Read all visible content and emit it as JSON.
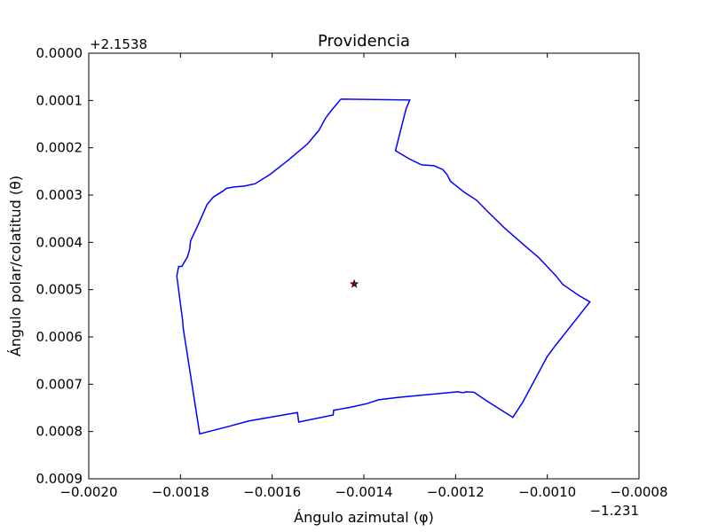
{
  "chart_data": {
    "type": "line",
    "title": "Providencia",
    "xlabel": "Ángulo azimutal (φ)",
    "ylabel": "Ángulo polar/colatitud (θ)",
    "x_offset_text": "−1.231",
    "y_offset_text": "+2.1538",
    "xlim": [
      -0.002,
      -0.0008
    ],
    "ylim": [
      0.0009,
      0.0
    ],
    "y_inverted": true,
    "x_tick_labels": [
      "−0.0020",
      "−0.0018",
      "−0.0016",
      "−0.0014",
      "−0.0012",
      "−0.0010",
      "−0.0008"
    ],
    "y_tick_labels": [
      "0.0000",
      "0.0001",
      "0.0002",
      "0.0003",
      "0.0004",
      "0.0005",
      "0.0006",
      "0.0007",
      "0.0008",
      "0.0009"
    ],
    "grid": false,
    "legend": "none",
    "boundary_color": "#0000ff",
    "centroid_color": "#8b0000",
    "series": [
      {
        "values": [
          [
            -0.00145,
            9.7e-05
          ],
          [
            -0.0013,
            9.9e-05
          ],
          [
            -0.001308,
            0.000118
          ],
          [
            -0.001331,
            0.000206
          ],
          [
            -0.0013,
            0.000224
          ],
          [
            -0.001274,
            0.000236
          ],
          [
            -0.001247,
            0.000238
          ],
          [
            -0.001228,
            0.000246
          ],
          [
            -0.001219,
            0.000256
          ],
          [
            -0.001211,
            0.000271
          ],
          [
            -0.001181,
            0.000294
          ],
          [
            -0.001154,
            0.000311
          ],
          [
            -0.001134,
            0.000331
          ],
          [
            -0.001094,
            0.000369
          ],
          [
            -0.001054,
            0.000403
          ],
          [
            -0.001019,
            0.000432
          ],
          [
            -0.000981,
            0.000471
          ],
          [
            -0.000966,
            0.000489
          ],
          [
            -0.00093,
            0.000513
          ],
          [
            -0.000907,
            0.000526
          ],
          [
            -0.000983,
            0.000619
          ],
          [
            -0.001,
            0.000641
          ],
          [
            -0.001053,
            0.000737
          ],
          [
            -0.001075,
            0.00077
          ],
          [
            -0.001131,
            0.000736
          ],
          [
            -0.00116,
            0.000717
          ],
          [
            -0.001178,
            0.000716
          ],
          [
            -0.001183,
            0.000718
          ],
          [
            -0.001196,
            0.000716
          ],
          [
            -0.001326,
            0.000728
          ],
          [
            -0.001368,
            0.000733
          ],
          [
            -0.001393,
            0.000741
          ],
          [
            -0.001431,
            0.000749
          ],
          [
            -0.001466,
            0.000755
          ],
          [
            -0.001467,
            0.000765
          ],
          [
            -0.001542,
            0.00078
          ],
          [
            -0.001545,
            0.00076
          ],
          [
            -0.001652,
            0.000778
          ],
          [
            -0.001694,
            0.000789
          ],
          [
            -0.001758,
            0.000805
          ],
          [
            -0.001794,
            0.000581
          ],
          [
            -0.001795,
            0.000567
          ],
          [
            -0.001808,
            0.000471
          ],
          [
            -0.001804,
            0.000451
          ],
          [
            -0.001797,
            0.000451
          ],
          [
            -0.001785,
            0.000431
          ],
          [
            -0.00178,
            0.000415
          ],
          [
            -0.001778,
            0.000397
          ],
          [
            -0.001762,
            0.000364
          ],
          [
            -0.001742,
            0.00032
          ],
          [
            -0.001728,
            0.000304
          ],
          [
            -0.001708,
            0.000292
          ],
          [
            -0.0017,
            0.000286
          ],
          [
            -0.001683,
            0.000283
          ],
          [
            -0.001661,
            0.000281
          ],
          [
            -0.001637,
            0.000276
          ],
          [
            -0.001604,
            0.000256
          ],
          [
            -0.001566,
            0.000227
          ],
          [
            -0.001523,
            0.000192
          ],
          [
            -0.001498,
            0.000163
          ],
          [
            -0.001484,
            0.000138
          ],
          [
            -0.00147,
            0.00012
          ],
          [
            -0.00145,
            9.7e-05
          ]
        ]
      }
    ],
    "centroid": {
      "x": -0.001421,
      "y": 0.000488
    }
  }
}
